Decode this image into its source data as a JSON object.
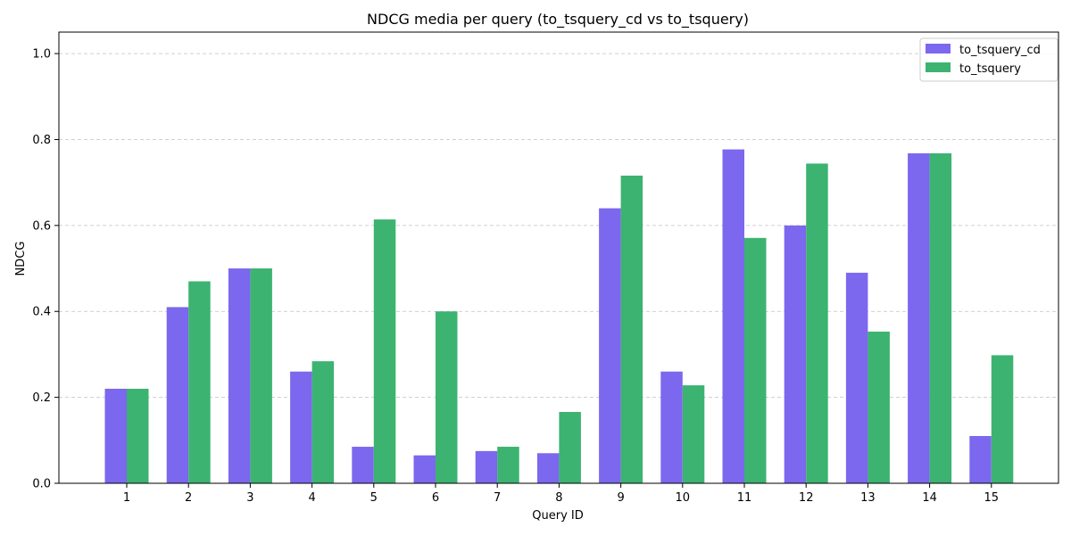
{
  "chart_data": {
    "type": "bar",
    "title": "NDCG media per query (to_tsquery_cd vs to_tsquery)",
    "xlabel": "Query ID",
    "ylabel": "NDCG",
    "categories": [
      "1",
      "2",
      "3",
      "4",
      "5",
      "6",
      "7",
      "8",
      "9",
      "10",
      "11",
      "12",
      "13",
      "14",
      "15"
    ],
    "series": [
      {
        "name": "to_tsquery_cd",
        "color": "#7b68ee",
        "values": [
          0.22,
          0.41,
          0.5,
          0.26,
          0.085,
          0.065,
          0.075,
          0.07,
          0.64,
          0.26,
          0.777,
          0.6,
          0.49,
          0.768,
          0.11
        ]
      },
      {
        "name": "to_tsquery",
        "color": "#3cb371",
        "values": [
          0.22,
          0.47,
          0.5,
          0.284,
          0.614,
          0.4,
          0.085,
          0.166,
          0.716,
          0.228,
          0.571,
          0.744,
          0.353,
          0.768,
          0.298
        ]
      }
    ],
    "ylim": [
      0,
      1.05
    ],
    "yticks": [
      "0.0",
      "0.2",
      "0.4",
      "0.6",
      "0.8",
      "1.0"
    ],
    "grid": "y-dashed",
    "legend_position": "top-right"
  }
}
